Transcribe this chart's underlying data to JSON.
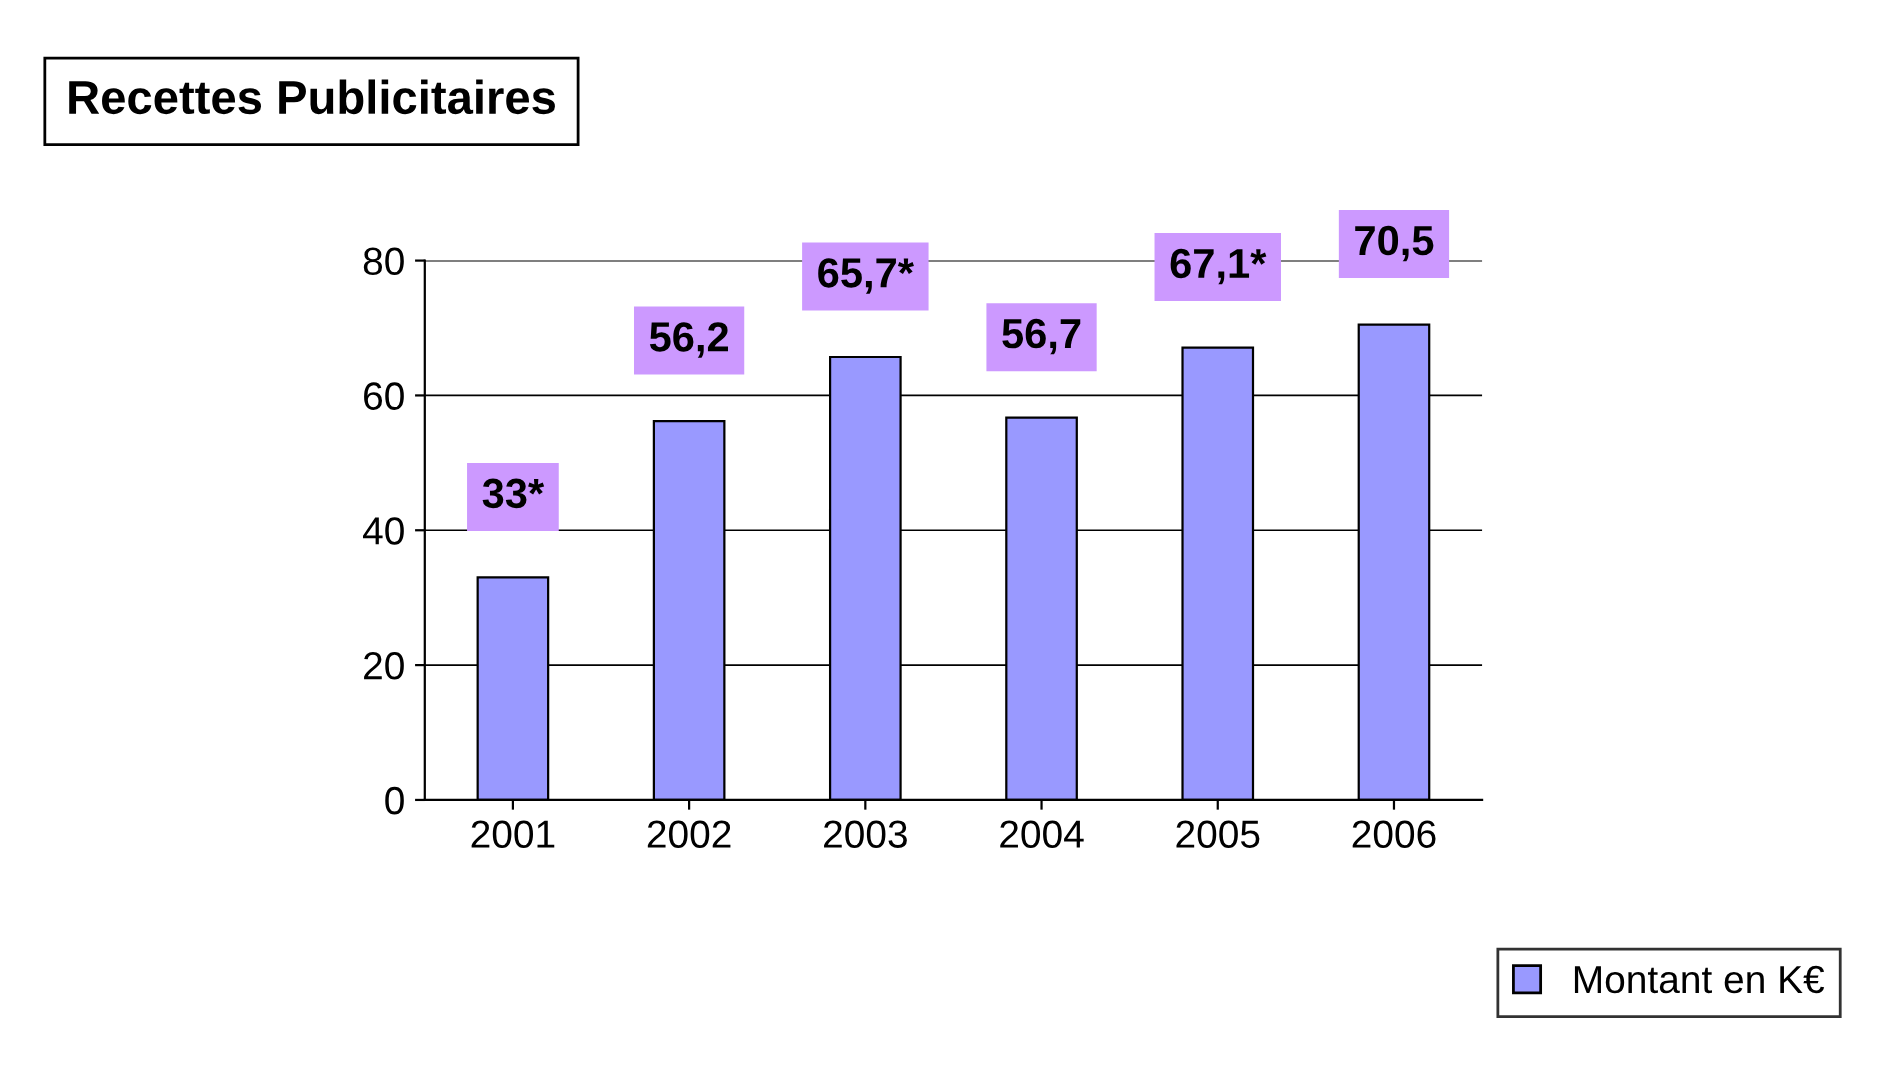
{
  "chart_data": {
    "type": "bar",
    "title": "Recettes Publicitaires",
    "categories": [
      "2001",
      "2002",
      "2003",
      "2004",
      "2005",
      "2006"
    ],
    "series": [
      {
        "name": "Montant en K€",
        "color": "#9999ff",
        "values": [
          33,
          56.2,
          65.7,
          56.7,
          67.1,
          70.5
        ],
        "value_labels": [
          "33*",
          "56,2",
          "65,7*",
          "56,7",
          "67,1*",
          "70,5"
        ]
      }
    ],
    "ylim": [
      0,
      80
    ],
    "yticks": [
      0,
      20,
      40,
      60,
      80
    ],
    "grid": "y",
    "legend": "bottom right"
  }
}
